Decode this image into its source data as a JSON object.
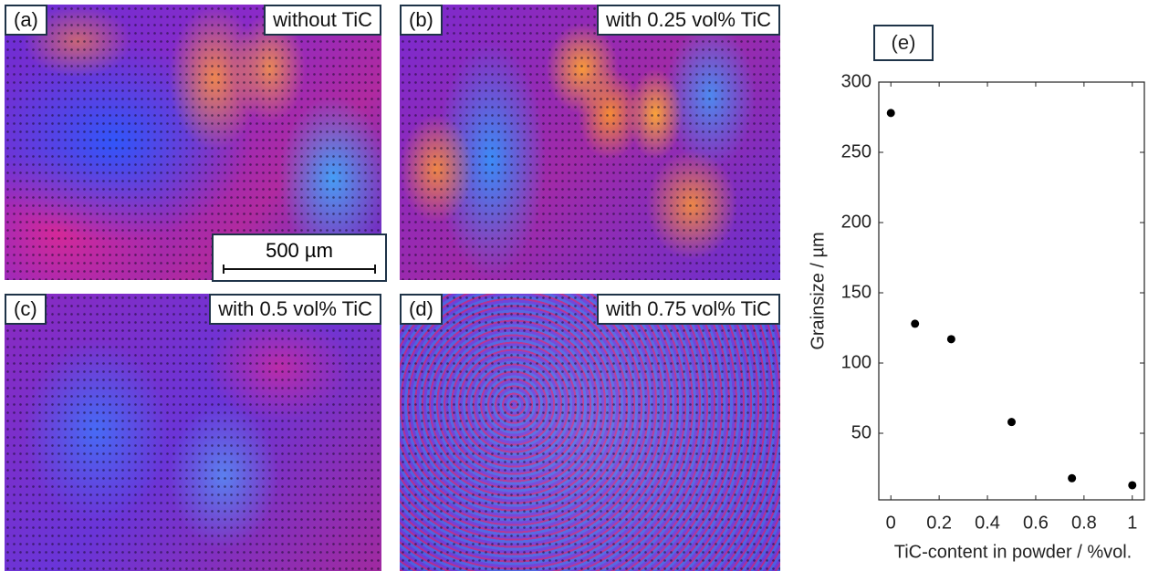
{
  "panels": [
    {
      "label": "(a)",
      "caption": "without TiC",
      "scale_bar": "500 µm"
    },
    {
      "label": "(b)",
      "caption": "with 0.25 vol% TiC"
    },
    {
      "label": "(c)",
      "caption": "with 0.5 vol% TiC"
    },
    {
      "label": "(d)",
      "caption": "with 0.75 vol% TiC"
    }
  ],
  "chart_data": {
    "type": "scatter",
    "panel_label": "(e)",
    "x": [
      0,
      0.1,
      0.25,
      0.5,
      0.75,
      1
    ],
    "values": [
      278,
      128,
      117,
      58,
      18,
      13
    ],
    "color": "#000000",
    "xlabel": "TiC-content in powder / %vol.",
    "ylabel": "Grainsize / µm",
    "xlim": [
      -0.05,
      1.05
    ],
    "ylim": [
      2.6,
      300
    ],
    "xticks": [
      0,
      0.2,
      0.4,
      0.6,
      0.8,
      1
    ],
    "yticks": [
      50,
      100,
      150,
      200,
      250,
      300
    ]
  }
}
